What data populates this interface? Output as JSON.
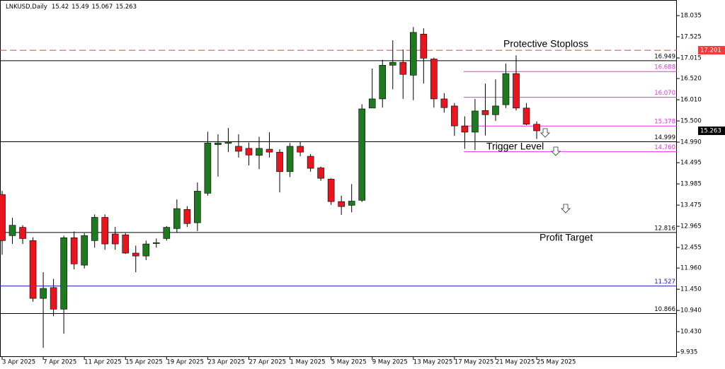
{
  "chart_data": {
    "type": "candlestick",
    "symbol": "LNKUSD,Daily",
    "categories": [
      "3 Apr 2025",
      null,
      null,
      null,
      "7 Apr 2025",
      null,
      null,
      null,
      "11 Apr 2025",
      null,
      null,
      null,
      "15 Apr 2025",
      null,
      null,
      null,
      "19 Apr 2025",
      null,
      null,
      null,
      "23 Apr 2025",
      null,
      null,
      null,
      "27 Apr 2025",
      null,
      null,
      null,
      "1 May 2025",
      null,
      null,
      null,
      "5 May 2025",
      null,
      null,
      null,
      "9 May 2025",
      null,
      null,
      null,
      "13 May 2025",
      null,
      null,
      null,
      "17 May 2025",
      null,
      null,
      null,
      "21 May 2025",
      null,
      null,
      null,
      "25 May 2025"
    ],
    "series": {
      "up_color": "#1f7a1f",
      "down_color": "#e8141e",
      "open": [
        13.73,
        12.74,
        12.94,
        12.62,
        11.23,
        11.49,
        10.97,
        12.69,
        12.03,
        12.62,
        13.18,
        12.78,
        12.76,
        12.32,
        12.25,
        12.55,
        12.67,
        12.91,
        13.37,
        13.05,
        13.76,
        14.93,
        14.96,
        14.89,
        14.84,
        14.67,
        14.82,
        14.75,
        14.28,
        14.89,
        14.65,
        14.37,
        14.1,
        13.56,
        13.47,
        13.59,
        15.81,
        16.03,
        16.84,
        16.91,
        16.6,
        17.59,
        16.99,
        16.03,
        15.86,
        15.38,
        15.23,
        15.75,
        15.65,
        15.89,
        16.64,
        15.81,
        15.42
      ],
      "high": [
        13.82,
        13.17,
        12.99,
        12.7,
        11.86,
        11.7,
        12.74,
        12.84,
        12.8,
        13.25,
        13.25,
        12.95,
        12.8,
        12.5,
        12.62,
        12.67,
        12.97,
        13.61,
        13.45,
        14.02,
        15.24,
        15.18,
        15.33,
        15.18,
        14.98,
        15.12,
        15.23,
        14.82,
        14.97,
        15.0,
        14.7,
        14.4,
        14.12,
        13.7,
        13.98,
        15.9,
        16.76,
        16.97,
        17.44,
        17.22,
        17.76,
        17.73,
        17.02,
        16.17,
        15.93,
        15.61,
        16.03,
        16.4,
        16.5,
        16.88,
        17.08,
        15.93,
        15.49
      ],
      "low": [
        12.28,
        12.54,
        12.54,
        11.15,
        10.04,
        10.8,
        10.38,
        11.93,
        11.95,
        12.45,
        12.4,
        12.4,
        12.3,
        11.86,
        12.15,
        12.45,
        12.62,
        12.81,
        12.95,
        12.85,
        13.7,
        14.16,
        14.75,
        14.62,
        14.43,
        14.34,
        14.62,
        13.78,
        14.15,
        14.65,
        14.28,
        14.06,
        13.48,
        13.24,
        13.3,
        13.55,
        15.82,
        15.82,
        16.26,
        16.03,
        16.0,
        16.4,
        15.82,
        15.7,
        15.14,
        14.83,
        14.8,
        15.15,
        15.5,
        15.81,
        15.75,
        15.4,
        15.067
      ],
      "close": [
        12.62,
        12.99,
        12.67,
        11.23,
        11.47,
        10.97,
        12.69,
        12.06,
        12.74,
        13.18,
        12.54,
        12.54,
        12.32,
        12.25,
        12.54,
        12.57,
        12.94,
        13.39,
        13.03,
        13.81,
        14.97,
        14.97,
        15.0,
        14.77,
        14.68,
        14.84,
        14.75,
        14.28,
        14.89,
        14.75,
        14.36,
        14.12,
        13.56,
        13.44,
        13.57,
        15.79,
        16.03,
        16.84,
        16.91,
        16.62,
        17.63,
        17.01,
        16.03,
        15.82,
        15.38,
        15.23,
        15.74,
        15.65,
        15.86,
        16.64,
        15.81,
        15.42,
        15.263
      ]
    },
    "ylim": [
      9.82,
      18.41
    ],
    "yticks": [
      18.035,
      17.525,
      17.015,
      {
        "value": 16.52,
        "label": "16.520"
      },
      {
        "value": 16.01,
        "label": "16.010"
      },
      {
        "value": 15.5,
        "label": "15.500"
      },
      {
        "value": 14.99,
        "label": "14.990"
      },
      14.495,
      13.985,
      13.475,
      12.965,
      12.455,
      {
        "value": 11.96,
        "label": "11.960"
      },
      {
        "value": 11.45,
        "label": "11.450"
      },
      {
        "value": 10.94,
        "label": "10.940"
      },
      {
        "value": 10.43,
        "label": "10.430"
      },
      9.935
    ],
    "levels": [
      {
        "value": 17.201,
        "color": "#f03c3c",
        "style": "dashed-box"
      },
      {
        "value": 16.949,
        "color": "#000000",
        "style": "full"
      },
      {
        "value": 16.688,
        "color": "#e632e6",
        "style": "partial"
      },
      {
        "value": 16.07,
        "label": "16.070",
        "color": "#e632e6",
        "style": "partial"
      },
      {
        "value": 15.378,
        "color": "#e632e6",
        "style": "partial"
      },
      {
        "value": 14.999,
        "color": "#000000",
        "style": "full"
      },
      {
        "value": 14.76,
        "label": "14.760",
        "color": "#e632e6",
        "style": "partial"
      },
      {
        "value": 12.816,
        "color": "#000000",
        "style": "full"
      },
      {
        "value": 11.527,
        "color": "#2020c0",
        "style": "full"
      },
      {
        "value": 10.866,
        "color": "#000000",
        "style": "full"
      }
    ],
    "annotations": [
      "Protective Stoploss",
      "Trigger Level",
      "Profit Target"
    ]
  }
}
